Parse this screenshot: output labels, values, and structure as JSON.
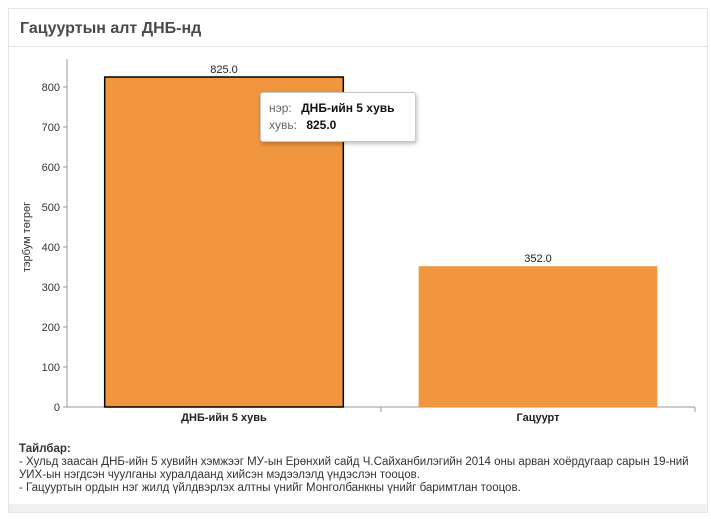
{
  "title": "Гацууртын алт ДНБ-нд",
  "tooltip": {
    "name_key": "нэр:",
    "name_value": "ДНБ-ийн 5 хувь",
    "value_key": "хувь:",
    "value_value": "825.0"
  },
  "notes": {
    "heading": "Тайлбар:",
    "lines": [
      "- Хульд заасан ДНБ-ийн 5 хувийн хэмжээг МУ-ын Ерөнхий сайд Ч.Сайханбилэгийн 2014 оны арван хоёрдугаар сарын 19-ний УИХ-ын нэгдсэн чуулганы хуралдаанд хийсэн мэдээлэлд үндэслэн тооцов.",
      "- Гацууртын ордын нэг жилд үйлдвэрлэх алтны үнийг Монголбанкны үнийг баримтлан тооцов."
    ]
  },
  "colors": {
    "bar_fill": "#f0963f",
    "bar_highlight_stroke": "#000000",
    "axis": "#9a9a9a"
  },
  "chart_data": {
    "type": "bar",
    "categories": [
      "ДНБ-ийн 5 хувь",
      "Гацуурт"
    ],
    "values": [
      825.0,
      352.0
    ],
    "value_labels": [
      "825.0",
      "352.0"
    ],
    "ylabel": "тэрбум төгрөг",
    "xlabel": "",
    "ylim": [
      0,
      850
    ],
    "yticks": [
      0,
      100,
      200,
      300,
      400,
      500,
      600,
      700,
      800
    ],
    "highlighted_index": 0,
    "grid": false
  }
}
